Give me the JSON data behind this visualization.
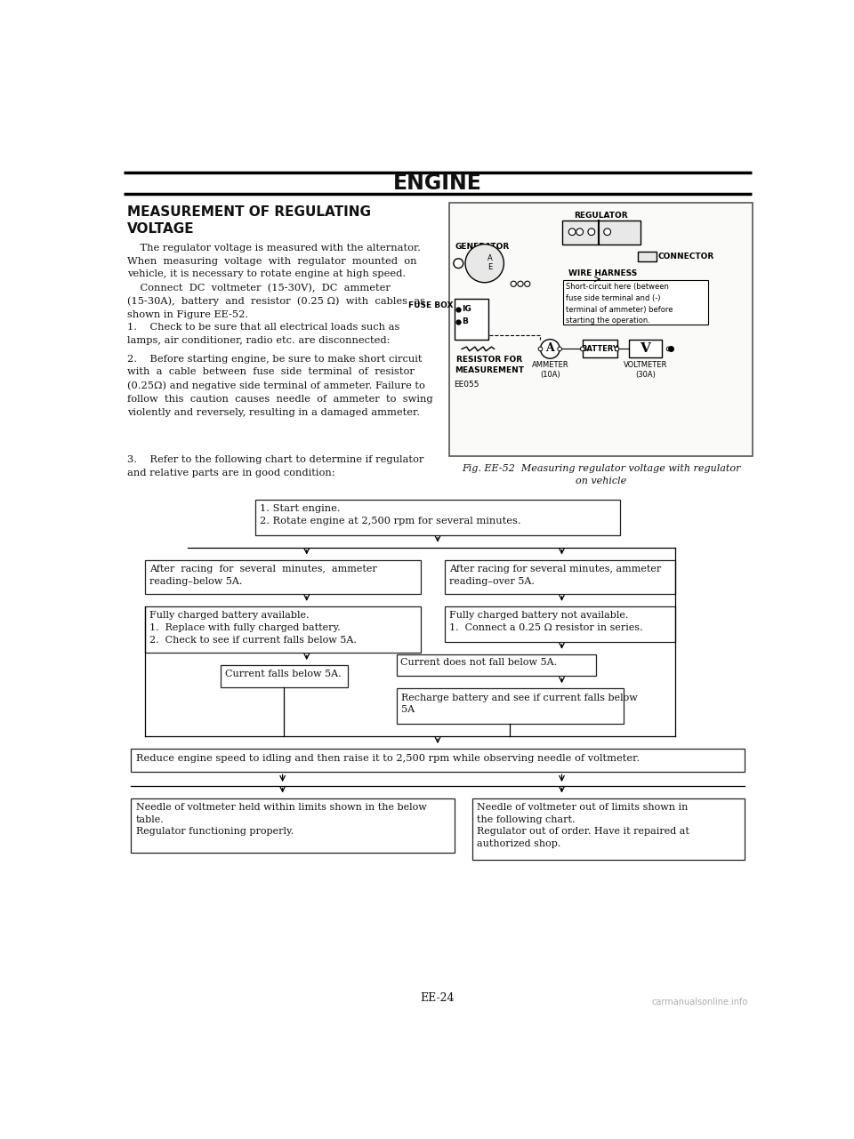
{
  "page_title": "ENGINE",
  "section_title": "MEASUREMENT OF REGULATING\nVOLTAGE",
  "body_text_1": "    The regulator voltage is measured with the alternator.\nWhen  measuring  voltage  with  regulator  mounted  on\nvehicle, it is necessary to rotate engine at high speed.\n    Connect  DC  voltmeter  (15-30V),  DC  ammeter\n(15-30A),  battery  and  resistor  (0.25 Ω)  with  cables  as\nshown in Figure EE-52.",
  "body_text_2": "1.    Check to be sure that all electrical loads such as\nlamps, air conditioner, radio etc. are disconnected:",
  "body_text_3": "2.    Before starting engine, be sure to make short circuit\nwith  a  cable  between  fuse  side  terminal  of  resistor\n(0.25Ω) and negative side terminal of ammeter. Failure to\nfollow  this  caution  causes  needle  of  ammeter  to  swing\nviolently and reversely, resulting in a damaged ammeter.",
  "body_text_4": "3.    Refer to the following chart to determine if regulator\nand relative parts are in good condition:",
  "fig_caption": "Fig. EE-52  Measuring regulator voltage with regulator\non vehicle",
  "footer": "EE-24",
  "watermark": "carmanualsonline.info",
  "flowchart": {
    "box0": "1. Start engine.\n2. Rotate engine at 2,500 rpm for several minutes.",
    "box1_left": "After  racing  for  several  minutes,  ammeter\nreading–below 5A.",
    "box1_right": "After racing for several minutes, ammeter\nreading–over 5A.",
    "box2_left": "Fully charged battery available.\n1.  Replace with fully charged battery.\n2.  Check to see if current falls below 5A.",
    "box2_right": "Fully charged battery not available.\n1.  Connect a 0.25 Ω resistor in series.",
    "box3_left": "Current falls below 5A.",
    "box3_right": "Current does not fall below 5A.",
    "box4_right": "Recharge battery and see if current falls below\n5A",
    "box5": "Reduce engine speed to idling and then raise it to 2,500 rpm while observing needle of voltmeter.",
    "box6_left": "Needle of voltmeter held within limits shown in the below\ntable.\nRegulator functioning properly.",
    "box6_right": "Needle of voltmeter out of limits shown in\nthe following chart.\nRegulator out of order. Have it repaired at\nauthorized shop."
  },
  "bg_color": "#ffffff",
  "text_color": "#111111",
  "box_color": "#ffffff",
  "box_edge": "#333333"
}
